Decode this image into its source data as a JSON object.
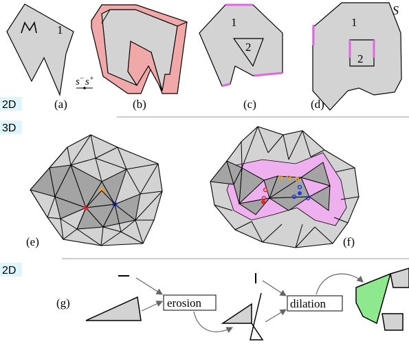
{
  "section_tags": {
    "top": "2D",
    "middle": "3D",
    "bottom": "2D"
  },
  "panels": {
    "a": {
      "label": "(a)",
      "region_label": "1",
      "manifold_label": "M",
      "s_minus": "s",
      "s_minus_sup": "−",
      "s_plus": "s",
      "s_plus_sup": "+"
    },
    "b": {
      "label": "(b)"
    },
    "c": {
      "label": "(c)",
      "region_1": "1",
      "region_2": "2"
    },
    "d": {
      "label": "(d)",
      "region_1": "1",
      "region_2": "2",
      "set_label": "S"
    },
    "e": {
      "label": "(e)"
    },
    "f": {
      "label": "(f)"
    },
    "g": {
      "label": "(g)",
      "op_1": "erosion",
      "op_2": "dilation"
    }
  },
  "colors": {
    "shape_fill": "#d3d3d3",
    "dark_fill": "#a4a4a4",
    "pink": "#f0a8a8",
    "magenta": "#e066e0",
    "lilac": "#eeb0ee",
    "green": "#8ee88e",
    "tag_bg": "#def6fb",
    "orange": "#f6a21a",
    "red": "#e6262a",
    "blue": "#1c3ce0"
  }
}
